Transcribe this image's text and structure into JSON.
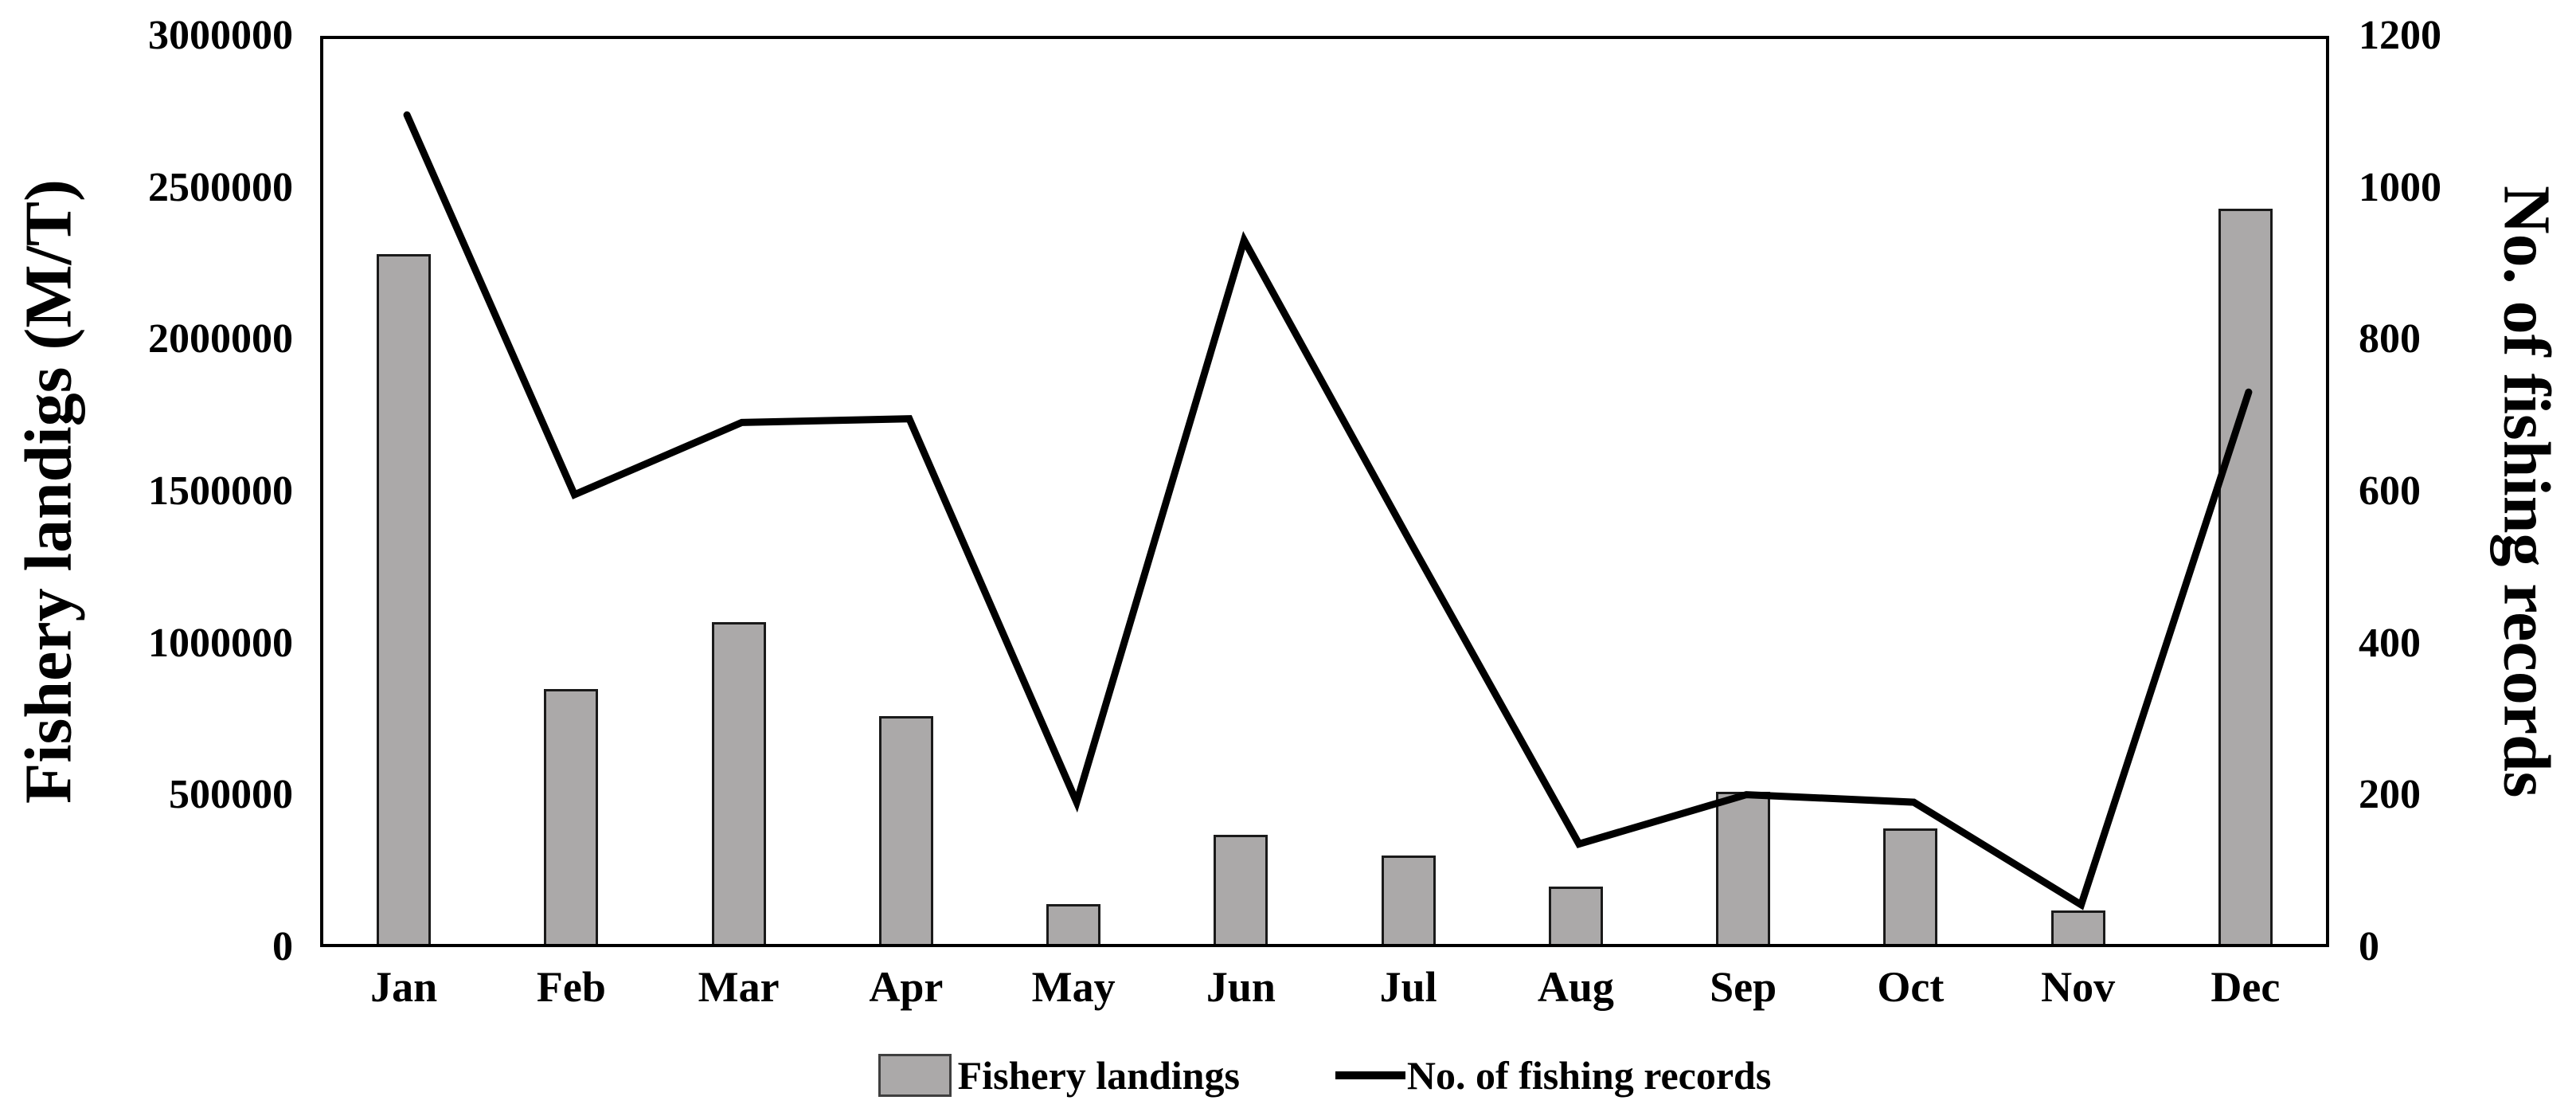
{
  "chart_data": {
    "type": "combo",
    "title": "",
    "categories": [
      "Jan",
      "Feb",
      "Mar",
      "Apr",
      "May",
      "Jun",
      "Jul",
      "Aug",
      "Sep",
      "Oct",
      "Nov",
      "Dec"
    ],
    "series": [
      {
        "name": "Fishery landings",
        "type": "bar",
        "axis": "left",
        "values": [
          2270000,
          840000,
          1060000,
          750000,
          130000,
          360000,
          290000,
          190000,
          500000,
          380000,
          110000,
          2420000
        ]
      },
      {
        "name": "No. of fishing records",
        "type": "line",
        "axis": "right",
        "values": [
          1100,
          600,
          695,
          700,
          195,
          935,
          535,
          140,
          205,
          195,
          60,
          735
        ]
      }
    ],
    "left_axis": {
      "label": "Fishery landigs (M/T)",
      "min": 0,
      "max": 3000000,
      "ticks": [
        "3000000",
        "2500000",
        "2000000",
        "1500000",
        "1000000",
        "500000",
        "0"
      ]
    },
    "right_axis": {
      "label": "No. of fishing records",
      "min": 0,
      "max": 1200,
      "ticks": [
        "1200",
        "1000",
        "800",
        "600",
        "400",
        "200",
        "0"
      ]
    },
    "legend": [
      {
        "label": "Fishery landings",
        "marker": "bar-swatch"
      },
      {
        "label": "No. of fishing records",
        "marker": "line-dash"
      }
    ],
    "layout": {
      "grid": false,
      "legend_position": "bottom-center"
    },
    "colors": {
      "bar_fill": "#aba9a9",
      "bar_border": "#1a1a1a",
      "line": "#000000",
      "text": "#000000"
    }
  }
}
